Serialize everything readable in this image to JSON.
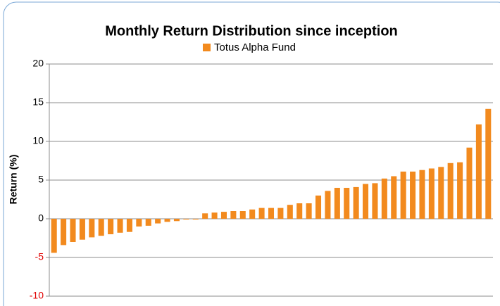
{
  "chart_data": {
    "type": "bar",
    "title": "Monthly Return Distribution since inception",
    "y_label": "Return (%)",
    "series": [
      {
        "name": "Totus Alpha Fund",
        "color": "#f28a1e",
        "values": [
          -4.4,
          -3.4,
          -3.0,
          -2.7,
          -2.4,
          -2.2,
          -2.0,
          -1.8,
          -1.7,
          -1.0,
          -0.9,
          -0.6,
          -0.4,
          -0.3,
          -0.1,
          -0.1,
          0.7,
          0.8,
          0.9,
          1.0,
          1.0,
          1.2,
          1.4,
          1.4,
          1.4,
          1.8,
          2.0,
          2.0,
          3.0,
          3.6,
          4.0,
          4.0,
          4.1,
          4.5,
          4.6,
          5.2,
          5.5,
          6.1,
          6.1,
          6.3,
          6.5,
          6.7,
          7.2,
          7.3,
          9.2,
          12.2,
          14.2
        ]
      }
    ],
    "ylim": [
      -10,
      20
    ],
    "yticks": [
      -10,
      -5,
      0,
      5,
      10,
      15,
      20
    ],
    "grid": true,
    "negative_tick_color": "#e00000",
    "legend": "top"
  }
}
